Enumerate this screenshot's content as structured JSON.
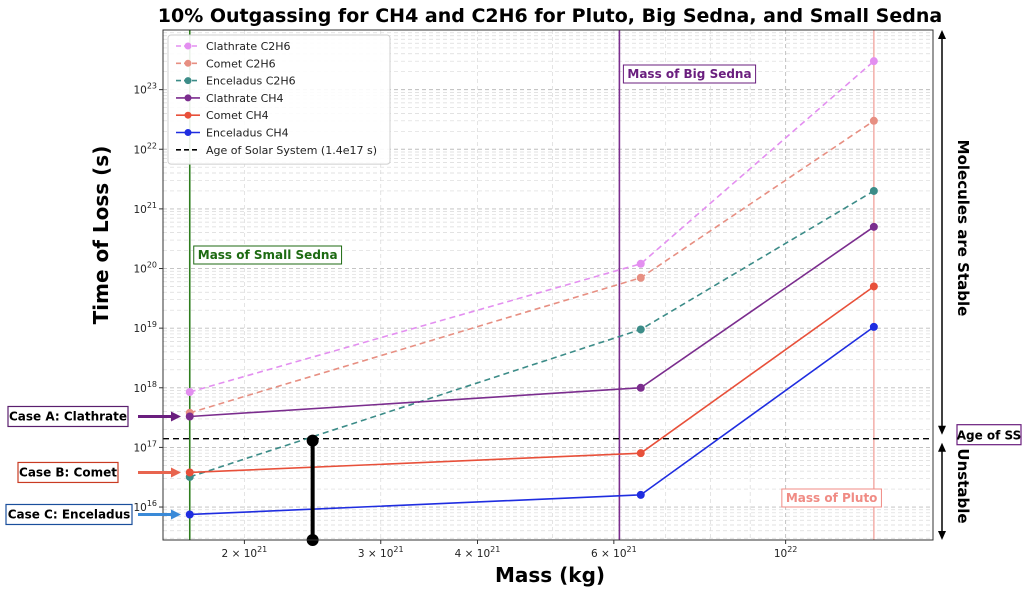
{
  "chart_data": {
    "type": "line",
    "title": "10% Outgassing for CH4 and C2H6 for Pluto, Big Sedna, and Small Sedna",
    "xlabel": "Mass (kg)",
    "ylabel": "Time of Loss (s)",
    "xscale": "log",
    "yscale": "log",
    "xlim": [
      1.57e+21,
      1.55e+22
    ],
    "ylim": [
      2800000000000000.0,
      1e+24
    ],
    "grid": true,
    "x": [
      1.7e+21,
      6.5e+21,
      1.3e+22
    ],
    "x_ticks": [
      {
        "value": 2e+21,
        "base": "2 × 10",
        "exp": "21"
      },
      {
        "value": 3e+21,
        "base": "3 × 10",
        "exp": "21"
      },
      {
        "value": 4e+21,
        "base": "4 × 10",
        "exp": "21"
      },
      {
        "value": 6e+21,
        "base": "6 × 10",
        "exp": "21"
      },
      {
        "value": 1e+22,
        "base": "10",
        "exp": "22"
      }
    ],
    "y_ticks": [
      {
        "value": 1e+16,
        "base": "10",
        "exp": "16"
      },
      {
        "value": 1e+17,
        "base": "10",
        "exp": "17"
      },
      {
        "value": 1e+18,
        "base": "10",
        "exp": "18"
      },
      {
        "value": 1e+19,
        "base": "10",
        "exp": "19"
      },
      {
        "value": 1e+20,
        "base": "10",
        "exp": "20"
      },
      {
        "value": 1e+21,
        "base": "10",
        "exp": "21"
      },
      {
        "value": 1e+22,
        "base": "10",
        "exp": "22"
      },
      {
        "value": 1e+23,
        "base": "10",
        "exp": "23"
      }
    ],
    "series": [
      {
        "name": "Clathrate C2H6",
        "color": "#e38ff0",
        "dashed": true,
        "values": [
          8.5e+17,
          1.2e+20,
          3e+23
        ]
      },
      {
        "name": "Comet C2H6",
        "color": "#e78f82",
        "dashed": true,
        "values": [
          3.8e+17,
          7e+19,
          3e+22
        ]
      },
      {
        "name": "Enceladus C2H6",
        "color": "#3c8c88",
        "dashed": true,
        "values": [
          3.2e+16,
          9.5e+18,
          2e+21
        ]
      },
      {
        "name": "Clathrate CH4",
        "color": "#7b2d8e",
        "dashed": false,
        "values": [
          3.3e+17,
          1e+18,
          5e+20
        ]
      },
      {
        "name": "Comet CH4",
        "color": "#e8503a",
        "dashed": false,
        "values": [
          3.8e+16,
          8e+16,
          5e+19
        ]
      },
      {
        "name": "Enceladus CH4",
        "color": "#1f2de0",
        "dashed": false,
        "values": [
          7500000000000000.0,
          1.6e+16,
          1.05e+19
        ]
      }
    ],
    "age_line": {
      "name": "Age of Solar System (1.4e17 s)",
      "value": 1.4e+17,
      "color": "#000000"
    },
    "vlines": [
      {
        "label": "Mass of Small Sedna",
        "x": 1.7e+21,
        "color": "#2e7d1e",
        "label_color": "#1d6a12"
      },
      {
        "label": "Mass of Big Sedna",
        "x": 6.1e+21,
        "color": "#7b2d8e",
        "label_color": "#6a1e7e"
      },
      {
        "label": "Mass of Pluto",
        "x": 1.3e+22,
        "color": "#f3b3ae",
        "label_color": "#f08b84"
      }
    ],
    "range_bar": {
      "x": 2.45e+21,
      "y_top": 1.3e+17,
      "y_bottom": 2800000000000000.0,
      "color": "#000000"
    },
    "cases": [
      {
        "label": "Case A: Clathrate",
        "color": "#5a1f6e",
        "arrow_color": "#6a1e7e",
        "y": 3.3e+17
      },
      {
        "label": "Case B: Comet",
        "color": "#c93b22",
        "arrow_color": "#e8654f",
        "y": 3.8e+16
      },
      {
        "label": "Case C: Enceladus",
        "color": "#1a4f9c",
        "arrow_color": "#3a8ad8",
        "y": 7500000000000000.0
      }
    ],
    "age_box": "Age of SS",
    "stable_label": "Molecules are Stable",
    "unstable_label": "Unstable"
  }
}
